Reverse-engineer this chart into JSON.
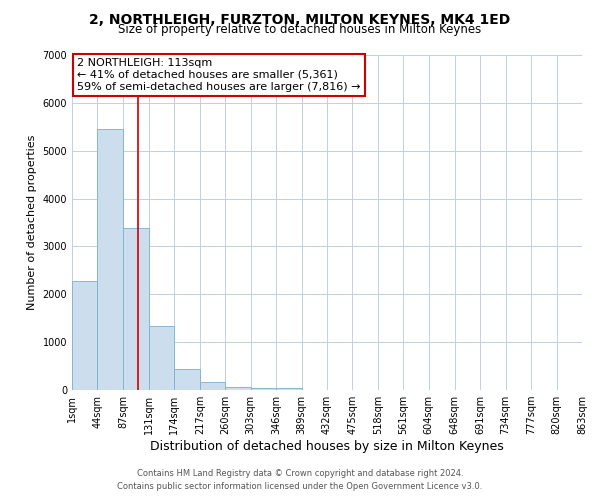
{
  "title": "2, NORTHLEIGH, FURZTON, MILTON KEYNES, MK4 1ED",
  "subtitle": "Size of property relative to detached houses in Milton Keynes",
  "xlabel": "Distribution of detached houses by size in Milton Keynes",
  "ylabel": "Number of detached properties",
  "bar_color": "#ccdded",
  "bar_edge_color": "#7ab0cc",
  "bin_edges": [
    1,
    44,
    87,
    131,
    174,
    217,
    260,
    303,
    346,
    389,
    432,
    475,
    518,
    561,
    604,
    648,
    691,
    734,
    777,
    820,
    863
  ],
  "bar_heights": [
    2270,
    5460,
    3380,
    1340,
    430,
    160,
    70,
    50,
    50,
    0,
    0,
    0,
    0,
    0,
    0,
    0,
    0,
    0,
    0,
    0
  ],
  "property_size": 113,
  "vline_color": "#cc0000",
  "annotation_title": "2 NORTHLEIGH: 113sqm",
  "annotation_line1": "← 41% of detached houses are smaller (5,361)",
  "annotation_line2": "59% of semi-detached houses are larger (7,816) →",
  "annotation_box_color": "#ffffff",
  "annotation_box_edge_color": "#cc0000",
  "ylim": [
    0,
    7000
  ],
  "yticks": [
    0,
    1000,
    2000,
    3000,
    4000,
    5000,
    6000,
    7000
  ],
  "tick_labels": [
    "1sqm",
    "44sqm",
    "87sqm",
    "131sqm",
    "174sqm",
    "217sqm",
    "260sqm",
    "303sqm",
    "346sqm",
    "389sqm",
    "432sqm",
    "475sqm",
    "518sqm",
    "561sqm",
    "604sqm",
    "648sqm",
    "691sqm",
    "734sqm",
    "777sqm",
    "820sqm",
    "863sqm"
  ],
  "footer_line1": "Contains HM Land Registry data © Crown copyright and database right 2024.",
  "footer_line2": "Contains public sector information licensed under the Open Government Licence v3.0.",
  "background_color": "#ffffff",
  "grid_color": "#c0d0e0",
  "title_fontsize": 10,
  "subtitle_fontsize": 8.5,
  "xlabel_fontsize": 9,
  "ylabel_fontsize": 8,
  "tick_fontsize": 7,
  "annotation_fontsize": 8,
  "footer_fontsize": 6
}
